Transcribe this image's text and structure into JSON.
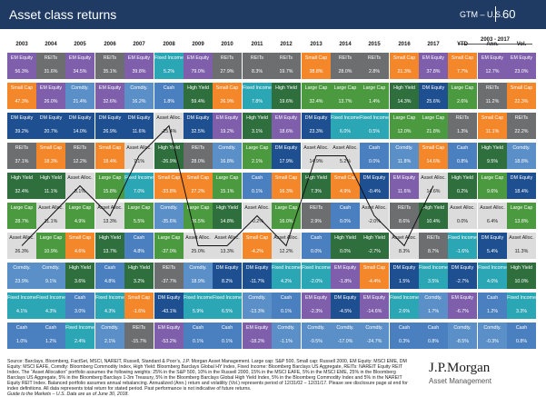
{
  "header": {
    "title": "Asset class returns",
    "gtm": "GTM – U.S.",
    "page": "60"
  },
  "colors": {
    "REITs": "#6d6e70",
    "EM Equity": "#7f5fab",
    "Small Cap": "#f4872a",
    "DM Equity": "#1d4f91",
    "High Yield": "#2f6f3e",
    "Large Cap": "#4c9a3f",
    "Asset Alloc.": "#dcdcdc",
    "Comdty.": "#5a8fc7",
    "Fixed Income": "#2ba6b5",
    "Cash": "#4a7fc0"
  },
  "chart_data": {
    "type": "table",
    "title": "Asset class returns",
    "period_label": "2003 - 2017",
    "columns": [
      "2003",
      "2004",
      "2005",
      "2006",
      "2007",
      "2008",
      "2009",
      "2010",
      "2011",
      "2012",
      "2013",
      "2014",
      "2015",
      "2016",
      "2017",
      "YTD",
      "Ann.",
      "Vol."
    ],
    "rows": [
      [
        [
          "EM Equity",
          "56.3%"
        ],
        [
          "REITs",
          "31.6%"
        ],
        [
          "EM Equity",
          "34.5%"
        ],
        [
          "REITs",
          "35.1%"
        ],
        [
          "EM Equity",
          "39.8%"
        ],
        [
          "Fixed Income",
          "5.2%"
        ],
        [
          "EM Equity",
          "79.0%"
        ],
        [
          "REITs",
          "27.9%"
        ],
        [
          "REITs",
          "8.3%"
        ],
        [
          "REITs",
          "19.7%"
        ],
        [
          "Small Cap",
          "38.8%"
        ],
        [
          "REITs",
          "28.0%"
        ],
        [
          "REITs",
          "2.8%"
        ],
        [
          "Small Cap",
          "21.3%"
        ],
        [
          "EM Equity",
          "37.8%"
        ],
        [
          "Small Cap",
          "7.7%"
        ],
        [
          "EM Equity",
          "12.7%"
        ],
        [
          "EM Equity",
          "23.0%"
        ]
      ],
      [
        [
          "Small Cap",
          "47.3%"
        ],
        [
          "EM Equity",
          "26.0%"
        ],
        [
          "Comdty.",
          "21.4%"
        ],
        [
          "EM Equity",
          "32.6%"
        ],
        [
          "Comdty.",
          "16.2%"
        ],
        [
          "Cash",
          "1.8%"
        ],
        [
          "High Yield",
          "59.4%"
        ],
        [
          "Small Cap",
          "26.9%"
        ],
        [
          "Fixed Income",
          "7.8%"
        ],
        [
          "High Yield",
          "19.6%"
        ],
        [
          "Large Cap",
          "32.4%"
        ],
        [
          "Large Cap",
          "13.7%"
        ],
        [
          "Large Cap",
          "1.4%"
        ],
        [
          "High Yield",
          "14.3%"
        ],
        [
          "DM Equity",
          "25.6%"
        ],
        [
          "Large Cap",
          "2.6%"
        ],
        [
          "REITs",
          "11.2%"
        ],
        [
          "Small Cap",
          "22.3%"
        ]
      ],
      [
        [
          "DM Equity",
          "39.2%"
        ],
        [
          "DM Equity",
          "20.7%"
        ],
        [
          "DM Equity",
          "14.0%"
        ],
        [
          "DM Equity",
          "26.9%"
        ],
        [
          "DM Equity",
          "11.6%"
        ],
        [
          "Asset Alloc.",
          "-25.4%"
        ],
        [
          "DM Equity",
          "32.5%"
        ],
        [
          "EM Equity",
          "19.2%"
        ],
        [
          "High Yield",
          "3.1%"
        ],
        [
          "EM Equity",
          "18.6%"
        ],
        [
          "DM Equity",
          "23.3%"
        ],
        [
          "Fixed Income",
          "6.0%"
        ],
        [
          "Fixed Income",
          "0.5%"
        ],
        [
          "Large Cap",
          "12.0%"
        ],
        [
          "Large Cap",
          "21.8%"
        ],
        [
          "REITs",
          "1.3%"
        ],
        [
          "Small Cap",
          "11.1%"
        ],
        [
          "REITs",
          "22.2%"
        ]
      ],
      [
        [
          "REITs",
          "37.1%"
        ],
        [
          "Small Cap",
          "18.3%"
        ],
        [
          "REITs",
          "12.2%"
        ],
        [
          "Small Cap",
          "18.4%"
        ],
        [
          "Asset Alloc.",
          "7.1%"
        ],
        [
          "High Yield",
          "-26.9%"
        ],
        [
          "REITs",
          "28.0%"
        ],
        [
          "Comdty.",
          "16.8%"
        ],
        [
          "Large Cap",
          "2.1%"
        ],
        [
          "DM Equity",
          "17.9%"
        ],
        [
          "Asset Alloc.",
          "14.9%"
        ],
        [
          "Asset Alloc.",
          "5.2%"
        ],
        [
          "Cash",
          "0.0%"
        ],
        [
          "Comdty.",
          "11.8%"
        ],
        [
          "Small Cap",
          "14.6%"
        ],
        [
          "Cash",
          "0.8%"
        ],
        [
          "High Yield",
          "9.5%"
        ],
        [
          "Comdty.",
          "18.8%"
        ]
      ],
      [
        [
          "High Yield",
          "32.4%"
        ],
        [
          "High Yield",
          "11.1%"
        ],
        [
          "Asset Alloc.",
          "8.1%"
        ],
        [
          "Large Cap",
          "15.8%"
        ],
        [
          "Fixed Income",
          "7.0%"
        ],
        [
          "Small Cap",
          "-33.8%"
        ],
        [
          "Small Cap",
          "27.2%"
        ],
        [
          "Large Cap",
          "15.1%"
        ],
        [
          "Cash",
          "0.1%"
        ],
        [
          "Small Cap",
          "16.3%"
        ],
        [
          "High Yield",
          "7.3%"
        ],
        [
          "Small Cap",
          "4.9%"
        ],
        [
          "DM Equity",
          "-0.4%"
        ],
        [
          "EM Equity",
          "11.6%"
        ],
        [
          "Asset Alloc.",
          "14.6%"
        ],
        [
          "High Yield",
          "0.2%"
        ],
        [
          "Large Cap",
          "9.6%"
        ],
        [
          "DM Equity",
          "18.4%"
        ]
      ],
      [
        [
          "Large Cap",
          "28.7%"
        ],
        [
          "Asset Alloc.",
          "11.1%"
        ],
        [
          "Large Cap",
          "4.9%"
        ],
        [
          "Asset Alloc.",
          "13.3%"
        ],
        [
          "Large Cap",
          "5.5%"
        ],
        [
          "Comdty.",
          "-35.6%"
        ],
        [
          "Large Cap",
          "26.5%"
        ],
        [
          "High Yield",
          "14.8%"
        ],
        [
          "Asset Alloc.",
          "-0.2%"
        ],
        [
          "Large Cap",
          "16.0%"
        ],
        [
          "REITs",
          "2.9%"
        ],
        [
          "Cash",
          "0.0%"
        ],
        [
          "Asset Alloc.",
          "-2.0%"
        ],
        [
          "REITs",
          "8.6%"
        ],
        [
          "High Yield",
          "10.4%"
        ],
        [
          "Asset Alloc.",
          "0.0%"
        ],
        [
          "Asset Alloc.",
          "6.4%"
        ],
        [
          "Large Cap",
          "13.8%"
        ]
      ],
      [
        [
          "Asset Alloc.",
          "26.3%"
        ],
        [
          "Large Cap",
          "10.9%"
        ],
        [
          "Small Cap",
          "4.6%"
        ],
        [
          "High Yield",
          "13.7%"
        ],
        [
          "Cash",
          "4.8%"
        ],
        [
          "Large Cap",
          "-37.0%"
        ],
        [
          "Asset Alloc.",
          "25.0%"
        ],
        [
          "Asset Alloc.",
          "13.3%"
        ],
        [
          "Small Cap",
          "-4.2%"
        ],
        [
          "Asset Alloc.",
          "12.2%"
        ],
        [
          "Cash",
          "0.0%"
        ],
        [
          "High Yield",
          "0.0%"
        ],
        [
          "High Yield",
          "-2.7%"
        ],
        [
          "Asset Alloc.",
          "8.3%"
        ],
        [
          "REITs",
          "8.7%"
        ],
        [
          "Fixed Income",
          "-1.6%"
        ],
        [
          "DM Equity",
          "5.4%"
        ],
        [
          "Asset Alloc.",
          "11.3%"
        ]
      ],
      [
        [
          "Comdty.",
          "23.9%"
        ],
        [
          "Comdty.",
          "9.1%"
        ],
        [
          "High Yield",
          "3.6%"
        ],
        [
          "Cash",
          "4.8%"
        ],
        [
          "High Yield",
          "3.2%"
        ],
        [
          "REITs",
          "-37.7%"
        ],
        [
          "Comdty.",
          "18.9%"
        ],
        [
          "DM Equity",
          "8.2%"
        ],
        [
          "DM Equity",
          "-11.7%"
        ],
        [
          "Fixed Income",
          "4.2%"
        ],
        [
          "Fixed Income",
          "-2.0%"
        ],
        [
          "EM Equity",
          "-1.8%"
        ],
        [
          "Small Cap",
          "-4.4%"
        ],
        [
          "DM Equity",
          "1.5%"
        ],
        [
          "Fixed Income",
          "3.5%"
        ],
        [
          "DM Equity",
          "-2.7%"
        ],
        [
          "Fixed Income",
          "4.0%"
        ],
        [
          "High Yield",
          "10.0%"
        ]
      ],
      [
        [
          "Fixed Income",
          "4.1%"
        ],
        [
          "Fixed Income",
          "4.3%"
        ],
        [
          "Cash",
          "3.0%"
        ],
        [
          "Fixed Income",
          "4.3%"
        ],
        [
          "Small Cap",
          "-1.6%"
        ],
        [
          "DM Equity",
          "-43.1%"
        ],
        [
          "Fixed Income",
          "5.9%"
        ],
        [
          "Fixed Income",
          "6.5%"
        ],
        [
          "Comdty.",
          "-13.3%"
        ],
        [
          "Cash",
          "0.1%"
        ],
        [
          "EM Equity",
          "-2.3%"
        ],
        [
          "DM Equity",
          "-4.5%"
        ],
        [
          "EM Equity",
          "-14.6%"
        ],
        [
          "Fixed Income",
          "2.6%"
        ],
        [
          "Comdty.",
          "1.7%"
        ],
        [
          "EM Equity",
          "-6.7%"
        ],
        [
          "Cash",
          "1.2%"
        ],
        [
          "Fixed Income",
          "3.3%"
        ]
      ],
      [
        [
          "Cash",
          "1.0%"
        ],
        [
          "Cash",
          "1.2%"
        ],
        [
          "Fixed Income",
          "2.4%"
        ],
        [
          "Comdty.",
          "2.1%"
        ],
        [
          "REITs",
          "-15.7%"
        ],
        [
          "EM Equity",
          "-53.2%"
        ],
        [
          "Cash",
          "0.1%"
        ],
        [
          "Cash",
          "0.1%"
        ],
        [
          "EM Equity",
          "-18.2%"
        ],
        [
          "Comdty.",
          "-1.1%"
        ],
        [
          "Comdty.",
          "-9.5%"
        ],
        [
          "Comdty.",
          "-17.0%"
        ],
        [
          "Comdty.",
          "-24.7%"
        ],
        [
          "Cash",
          "0.3%"
        ],
        [
          "Cash",
          "0.8%"
        ],
        [
          "Comdty.",
          "-8.5%"
        ],
        [
          "Comdty.",
          "-0.3%"
        ],
        [
          "Cash",
          "0.8%"
        ]
      ]
    ]
  },
  "footer": {
    "source": "Source: Barclays, Bloomberg, FactSet, MSCI, NAREIT, Russell, Standard & Poor’s, J.P. Morgan Asset Management. Large cap: S&P 500, Small cap: Russell 2000, EM Equity: MSCI EME, DM Equity: MSCI EAFE, Comdty: Bloomberg Commodity Index, High Yield: Bloomberg Barclays Global HY Index, Fixed Income: Bloomberg Barclays US Aggregate, REITs: NAREIT Equity REIT Index. The “Asset Allocation” portfolio assumes the following weights: 25% in the S&P 500, 10% in the Russell 2000, 15% in the MSCI EAFE, 5% in the MSCI EME, 25% in the Bloomberg Barclays US Aggregate, 5% in the Bloomberg Barclays 1-3m Treasury, 5% in the Bloomberg Barclays Global High Yield Index, 5% in the Bloomberg Commodity Index and 5% in the NAREIT Equity REIT Index. Balanced portfolio assumes annual rebalancing. Annualized (Ann.) return and volatility (Vol.) represents period of 12/31/02 – 12/31/17. Please see disclosure page at end for index definitions. All data represents total return for stated period. Past performance is not indicative of future returns.",
    "guide": "Guide to the Markets – U.S. Data are as of June 30, 2018.",
    "logo_main": "J.P.Morgan",
    "logo_sub": "Asset Management"
  }
}
